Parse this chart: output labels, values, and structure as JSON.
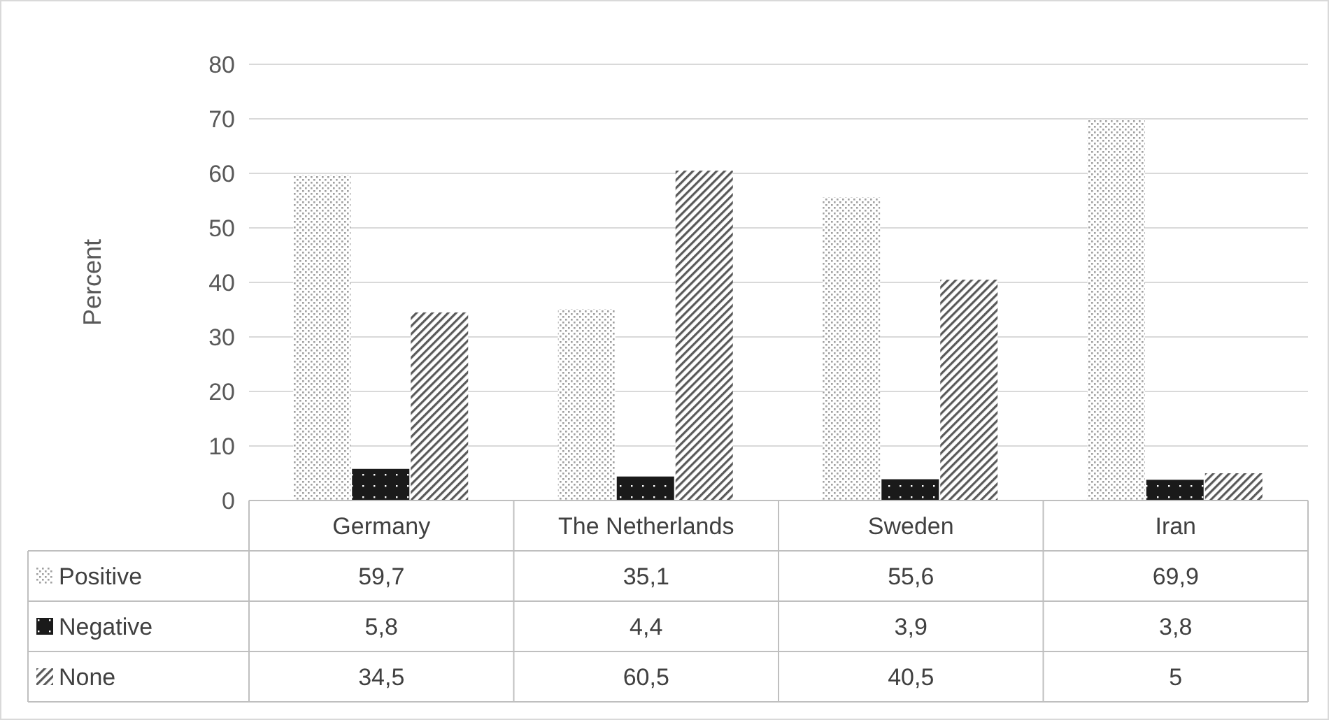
{
  "chart_data": {
    "type": "bar",
    "ylabel": "Percent",
    "categories": [
      "Germany",
      "The Netherlands",
      "Sweden",
      "Iran"
    ],
    "series": [
      {
        "name": "Positive",
        "color": "#a0a0a0",
        "values": [
          59.7,
          35.1,
          55.6,
          69.9
        ],
        "value_labels": [
          "59,7",
          "35,1",
          "55,6",
          "69,9"
        ]
      },
      {
        "name": "Negative",
        "color": "#1a1a1a",
        "values": [
          5.8,
          4.4,
          3.9,
          3.8
        ],
        "value_labels": [
          "5,8",
          "4,4",
          "3,9",
          "3,8"
        ]
      },
      {
        "name": "None",
        "color": "#595959",
        "values": [
          34.5,
          60.5,
          40.5,
          5
        ],
        "value_labels": [
          "34,5",
          "60,5",
          "40,5",
          "5"
        ]
      }
    ],
    "ylim": [
      0,
      80
    ],
    "yticks": [
      0,
      10,
      20,
      30,
      40,
      50,
      60,
      70,
      80
    ],
    "grid": "y",
    "legend": "bottom"
  }
}
